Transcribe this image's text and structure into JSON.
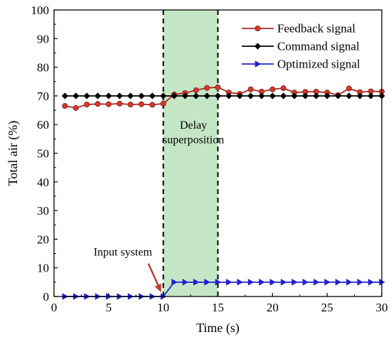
{
  "chart_data": {
    "type": "line",
    "title": "",
    "xlabel": "Time (s)",
    "ylabel": "Total air (%)",
    "xlim": [
      0,
      30
    ],
    "ylim": [
      0,
      100
    ],
    "xticks": [
      0,
      5,
      10,
      15,
      20,
      25,
      30
    ],
    "yticks": [
      0,
      10,
      20,
      30,
      40,
      50,
      60,
      70,
      80,
      90,
      100
    ],
    "grid": false,
    "legend_position": "top-right",
    "x": [
      1,
      2,
      3,
      4,
      5,
      6,
      7,
      8,
      9,
      10,
      11,
      12,
      13,
      14,
      15,
      16,
      17,
      18,
      19,
      20,
      21,
      22,
      23,
      24,
      25,
      26,
      27,
      28,
      29,
      30
    ],
    "series": [
      {
        "name": "Feedback signal",
        "color": "#a52a2a",
        "marker": "circle",
        "marker_color": "#d63a2a",
        "values": [
          66.5,
          65.8,
          67.0,
          67.2,
          67.1,
          67.3,
          67.0,
          67.1,
          66.9,
          67.3,
          70.5,
          71.0,
          72.0,
          72.8,
          73.0,
          71.2,
          70.7,
          72.3,
          71.5,
          72.3,
          72.7,
          71.2,
          71.4,
          71.5,
          71.2,
          70.3,
          72.6,
          71.3,
          71.6,
          71.5
        ]
      },
      {
        "name": "Command signal",
        "color": "#000000",
        "marker": "diamond",
        "marker_color": "#000000",
        "values": [
          70,
          70,
          70,
          70,
          70,
          70,
          70,
          70,
          70,
          70,
          70,
          70,
          70,
          70,
          70,
          70,
          70,
          70,
          70,
          70,
          70,
          70,
          70,
          70,
          70,
          70,
          70,
          70,
          70,
          70
        ]
      },
      {
        "name": "Optimized signal",
        "color": "#2222cc",
        "marker": "triangle-right",
        "marker_color": "#2222cc",
        "values": [
          0,
          0,
          0,
          0,
          0,
          0,
          0,
          0,
          0,
          0,
          5,
          5,
          5,
          5,
          5,
          5,
          5,
          5,
          5,
          5,
          5,
          5,
          5,
          5,
          5,
          5,
          5,
          5,
          5,
          5
        ]
      }
    ],
    "shaded_region": {
      "x_start": 10,
      "x_end": 15,
      "color": "#c5e6c5",
      "label_line1": "Delay",
      "label_line2": "superposition"
    },
    "vertical_lines": [
      10,
      15
    ],
    "annotation": {
      "text": "Input system",
      "arrow_color": "#c0392b",
      "text_at": [
        8.5,
        15
      ],
      "arrow_to": [
        10,
        0
      ]
    }
  }
}
